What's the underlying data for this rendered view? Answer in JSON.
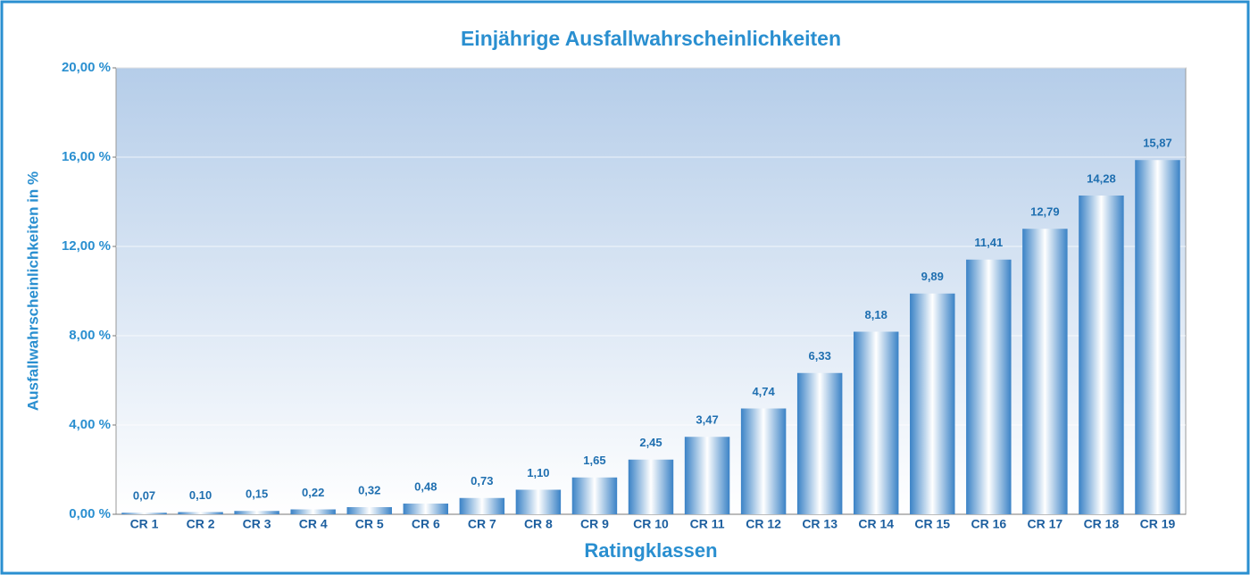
{
  "chart_data": {
    "type": "bar",
    "title": "Einjährige Ausfallwahrscheinlichkeiten",
    "x_label": "Ratingklassen",
    "y_label": "Ausfallwahrscheinlichkeiten in %",
    "categories": [
      "CR 1",
      "CR 2",
      "CR 3",
      "CR 4",
      "CR 5",
      "CR 6",
      "CR 7",
      "CR 8",
      "CR 9",
      "CR 10",
      "CR 11",
      "CR 12",
      "CR 13",
      "CR 14",
      "CR 15",
      "CR 16",
      "CR 17",
      "CR 18",
      "CR 19"
    ],
    "values": [
      0.07,
      0.1,
      0.15,
      0.22,
      0.32,
      0.48,
      0.73,
      1.1,
      1.65,
      2.45,
      3.47,
      4.74,
      6.33,
      8.18,
      9.89,
      11.41,
      12.79,
      14.28,
      15.87
    ],
    "value_labels": [
      "0,07",
      "0,10",
      "0,15",
      "0,22",
      "0,32",
      "0,48",
      "0,73",
      "1,10",
      "1,65",
      "2,45",
      "3,47",
      "4,74",
      "6,33",
      "8,18",
      "9,89",
      "11,41",
      "12,79",
      "14,28",
      "15,87"
    ],
    "color": "#3a82c6",
    "ylim": [
      0,
      20
    ],
    "yticks": [
      {
        "value": 0,
        "label": "0,00 %"
      },
      {
        "value": 4,
        "label": "4,00 %"
      },
      {
        "value": 8,
        "label": "8,00 %"
      },
      {
        "value": 12,
        "label": "12,00 %"
      },
      {
        "value": 16,
        "label": "16,00 %"
      },
      {
        "value": 20,
        "label": "20,00 %"
      }
    ],
    "grid": true
  }
}
